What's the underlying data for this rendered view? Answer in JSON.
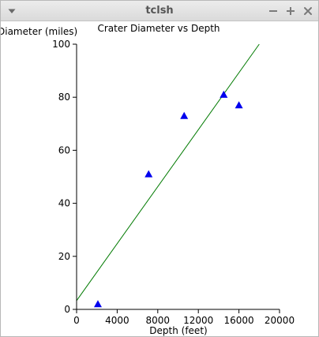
{
  "window": {
    "title": "tclsh"
  },
  "icons": {
    "menu": "chevron-down-icon",
    "minimize": "minimize-icon",
    "maximize": "plus-icon",
    "close": "close-icon"
  },
  "colors": {
    "marker": "#0000ee",
    "trendline": "#007a00",
    "axis": "#000000",
    "titlebar_text": "#555555"
  },
  "chart_data": {
    "type": "scatter",
    "title": "Crater Diameter vs Depth",
    "xlabel": "Depth (feet)",
    "ylabel": "Diameter (miles)",
    "xlim": [
      0,
      20000
    ],
    "ylim": [
      0,
      100
    ],
    "xticks": [
      0,
      4000,
      8000,
      12000,
      16000,
      20000
    ],
    "yticks": [
      0,
      20,
      40,
      60,
      80,
      100
    ],
    "grid": false,
    "legend": false,
    "marker": "triangle",
    "points": [
      {
        "x": 2100,
        "y": 2
      },
      {
        "x": 7100,
        "y": 51
      },
      {
        "x": 10600,
        "y": 73
      },
      {
        "x": 14500,
        "y": 81
      },
      {
        "x": 16000,
        "y": 77
      }
    ],
    "trendline": {
      "x": [
        0,
        18000
      ],
      "y": [
        3.3,
        100
      ]
    }
  }
}
